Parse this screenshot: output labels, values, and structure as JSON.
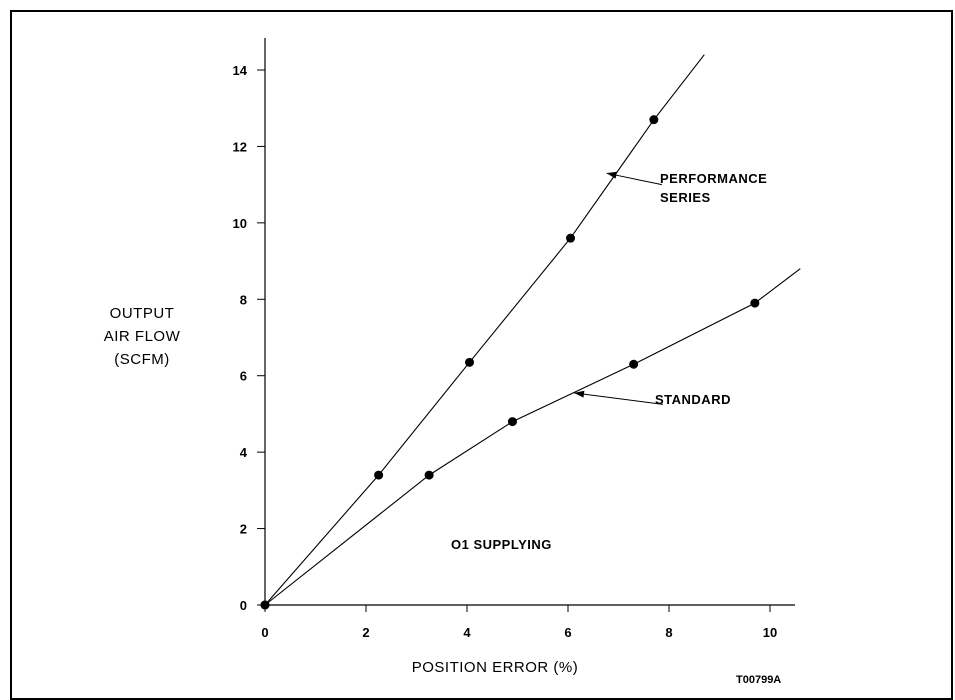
{
  "chart_data": {
    "type": "line",
    "title": "",
    "xlabel": "POSITION ERROR (%)",
    "ylabel": [
      "OUTPUT",
      "AIR FLOW",
      "(SCFM)"
    ],
    "xlim": [
      0,
      10
    ],
    "ylim": [
      0,
      14
    ],
    "xticks": [
      "0",
      "2",
      "4",
      "6",
      "8",
      "10"
    ],
    "yticks": [
      "0",
      "2",
      "4",
      "6",
      "8",
      "10",
      "12",
      "14"
    ],
    "grid": false,
    "series": [
      {
        "name": [
          "PERFORMANCE",
          "SERIES"
        ],
        "points": [
          [
            0,
            0
          ],
          [
            2.25,
            3.4
          ],
          [
            4.05,
            6.35
          ],
          [
            6.05,
            9.6
          ],
          [
            7.7,
            12.7
          ]
        ],
        "line_end": [
          8.7,
          14.4
        ]
      },
      {
        "name": [
          "STANDARD"
        ],
        "points": [
          [
            0,
            0
          ],
          [
            3.25,
            3.4
          ],
          [
            4.9,
            4.8
          ],
          [
            7.3,
            6.3
          ],
          [
            9.7,
            7.9
          ]
        ],
        "line_end": [
          10.6,
          8.8
        ]
      }
    ],
    "annotations": [
      {
        "text": "O1 SUPPLYING"
      },
      {
        "text": "T00799A"
      }
    ]
  }
}
